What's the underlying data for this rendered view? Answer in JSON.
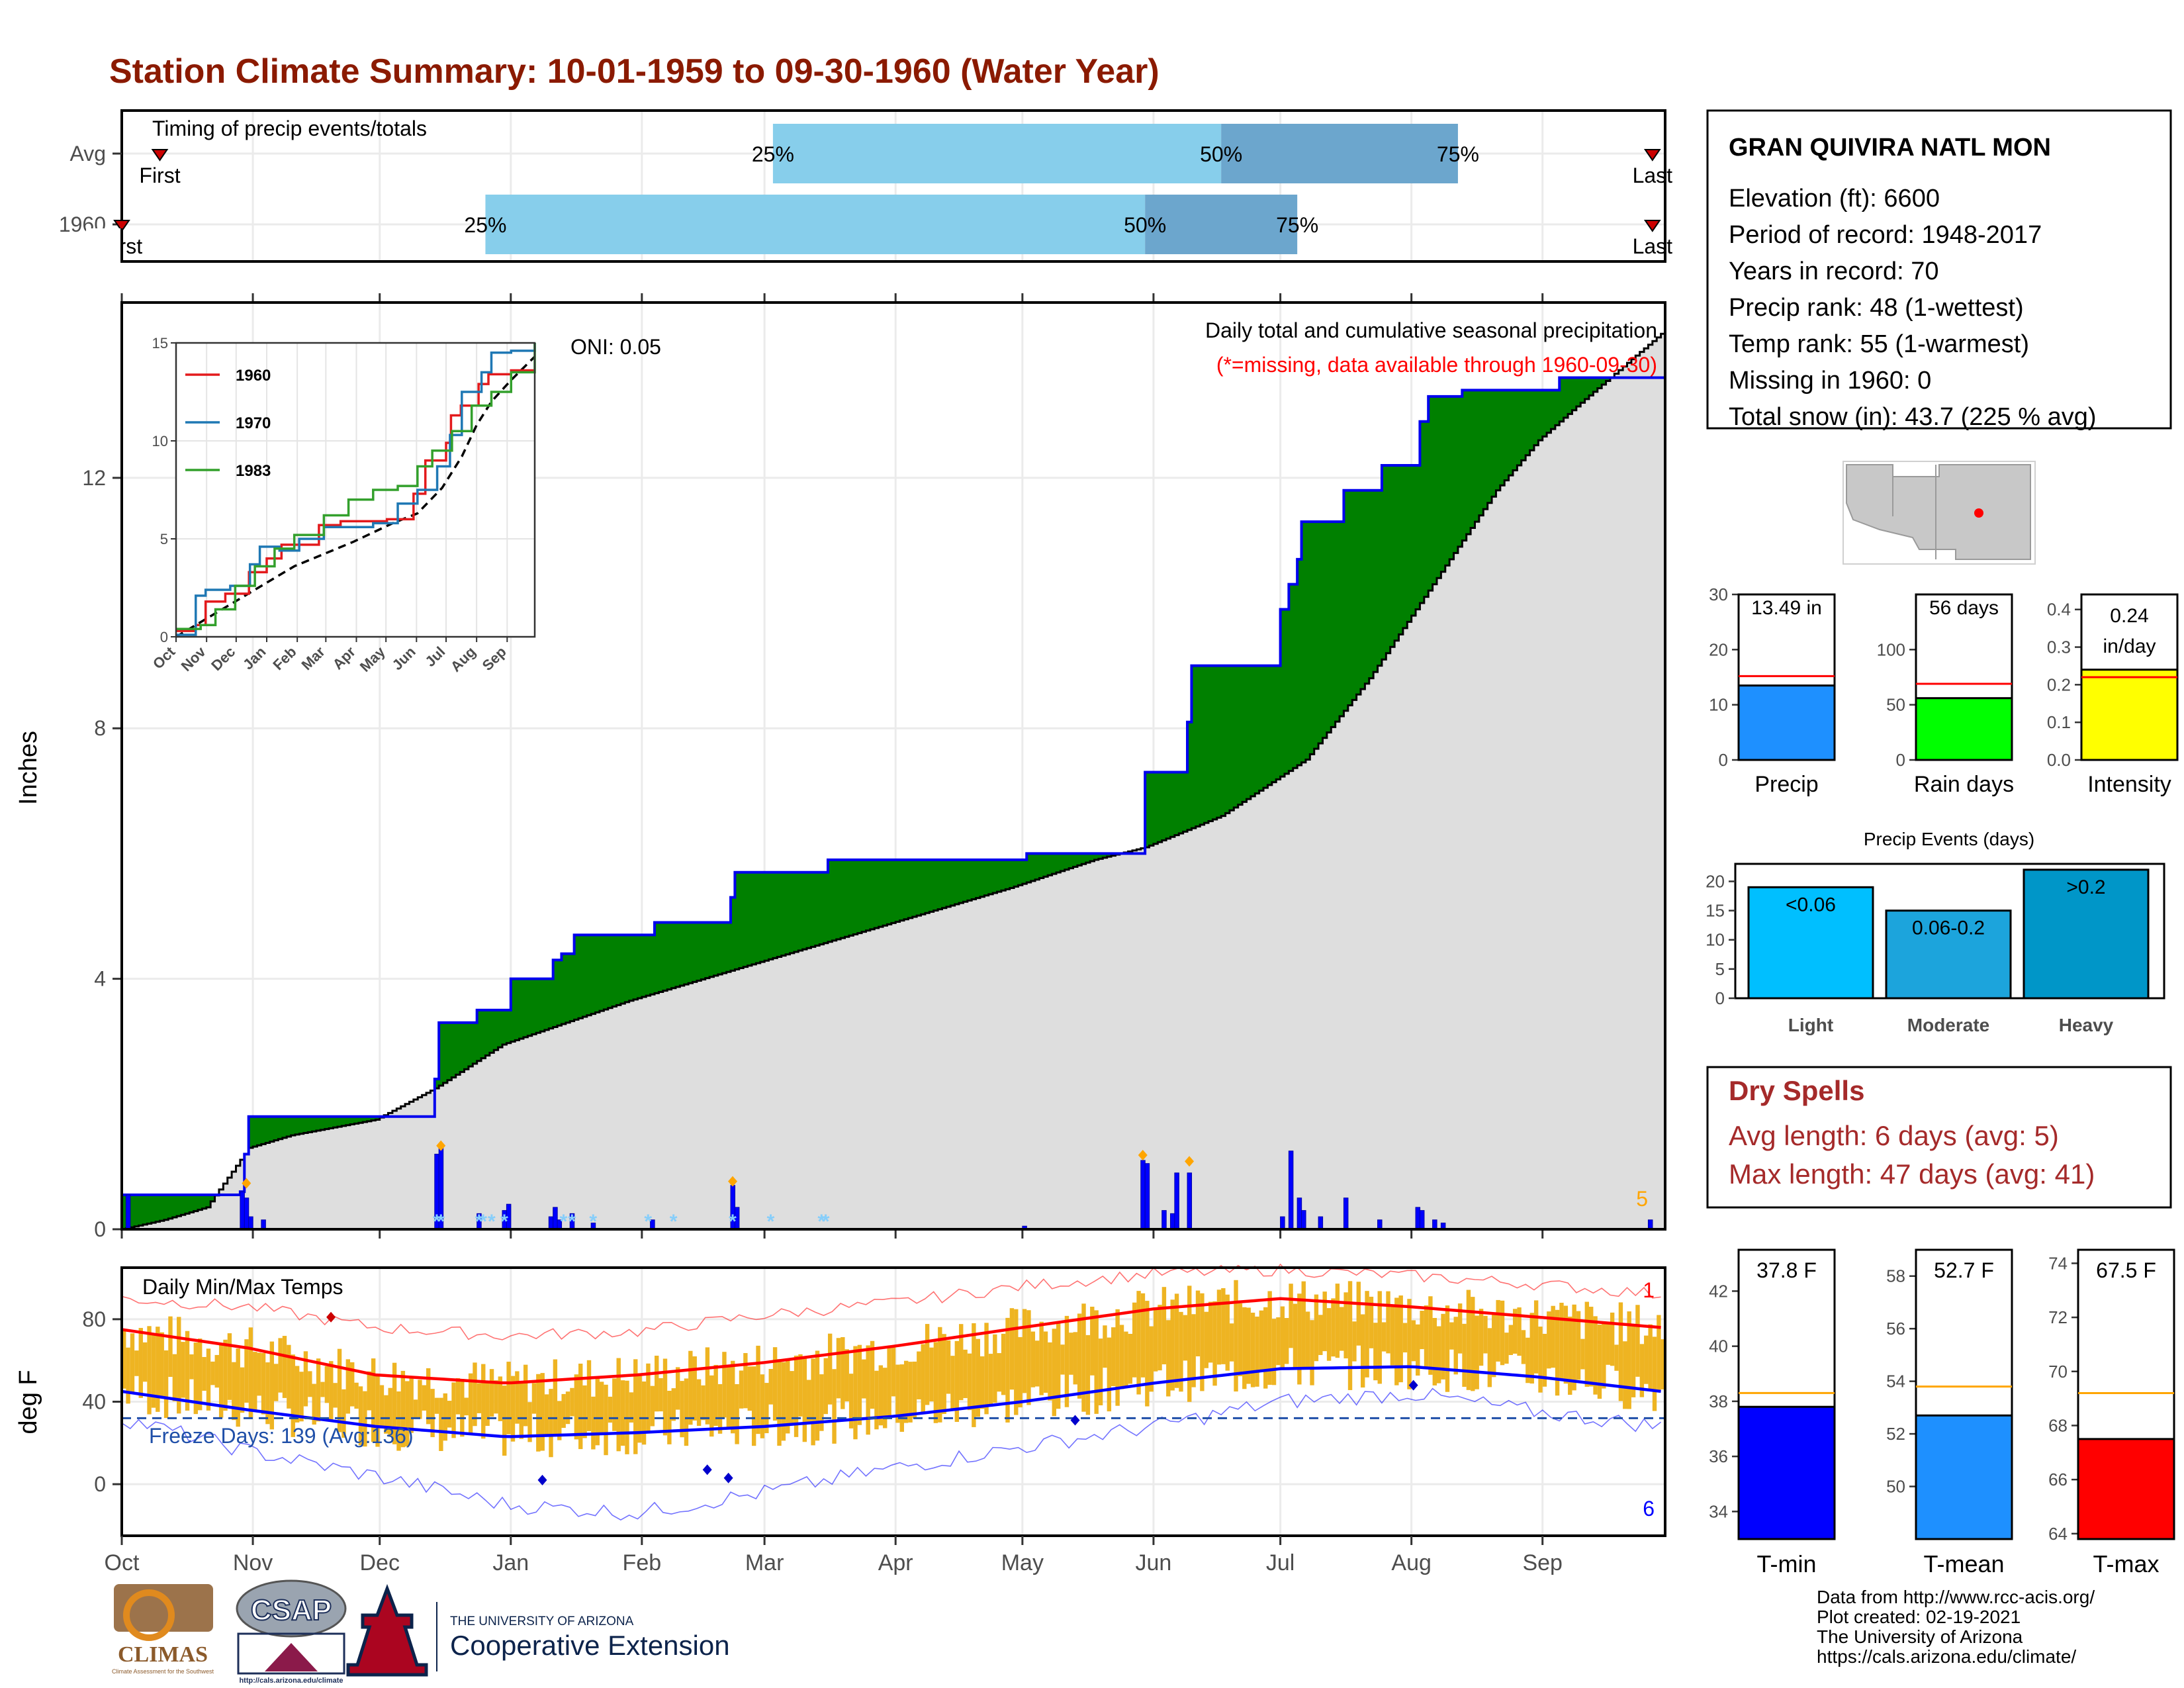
{
  "title": "Station Climate Summary: 10-01-1959 to 09-30-1960 (Water Year)",
  "colors": {
    "title": "#8b1a00",
    "q_light": "#87ceeb",
    "q_dark": "#6ca6cd",
    "above": "#008000",
    "below": "#8b5a0f",
    "normal_fill": "#dedede",
    "cumul_line": "#0000ee",
    "daily_bar": "#0000ff",
    "snow": "#87cefa",
    "marker": "#ffa500",
    "missing_text": "#ff0000",
    "temp_bar": "#eeb422",
    "tmax_line": "#ff0000",
    "tmin_line": "#0000ff",
    "dryspell": "#a52a2a",
    "tmin_bar": "#0000ff",
    "tmean_bar": "#1e90ff",
    "tmax_bar": "#ff0000",
    "rain_bar": "#00ff00",
    "intensity_bar": "#ffff00",
    "precip_bar": "#1e90ff",
    "light_bar": "#00bfff",
    "moderate_bar": "#1ca4dc",
    "heavy_bar": "#0096c8",
    "avg_line": "#ffa500"
  },
  "timing": {
    "label": "Timing of precip events/totals",
    "rows": [
      {
        "label": "Avg",
        "first": "First",
        "last": "Last",
        "p25": "25%",
        "p50": "50%",
        "p75": "75%",
        "first_day": 9,
        "q25_day": 154,
        "q50_day": 260,
        "q75_day": 316,
        "last_day": 362
      },
      {
        "label": "1960",
        "first": "First",
        "last": "Last",
        "p25": "25%",
        "p50": "50%",
        "p75": "75%",
        "first_day": 0,
        "q25_day": 86,
        "q50_day": 242,
        "q75_day": 278,
        "last_day": 362
      }
    ]
  },
  "precip": {
    "ylabel": "Inches",
    "yticks": [
      0,
      4,
      8,
      12
    ],
    "ymax": 14.8,
    "header": "Daily total and cumulative seasonal precipitation",
    "missing": "(*=missing, data available through 1960-09-30)",
    "oni": "ONI: 0.05",
    "count_label": "5",
    "cumulative_steps": [
      [
        0,
        0.55
      ],
      [
        27,
        0.55
      ],
      [
        28,
        0.6
      ],
      [
        29,
        1.2
      ],
      [
        30,
        1.8
      ],
      [
        71,
        1.8
      ],
      [
        74,
        2.4
      ],
      [
        75,
        3.3
      ],
      [
        82,
        3.3
      ],
      [
        84,
        3.5
      ],
      [
        91,
        3.5
      ],
      [
        92,
        4.0
      ],
      [
        100,
        4.0
      ],
      [
        102,
        4.3
      ],
      [
        104,
        4.4
      ],
      [
        106,
        4.4
      ],
      [
        107,
        4.7
      ],
      [
        124,
        4.7
      ],
      [
        126,
        4.9
      ],
      [
        132,
        4.9
      ],
      [
        144,
        5.3
      ],
      [
        145,
        5.7
      ],
      [
        166,
        5.7
      ],
      [
        167,
        5.9
      ],
      [
        213,
        5.9
      ],
      [
        214,
        6.0
      ],
      [
        241,
        6.0
      ],
      [
        242,
        7.3
      ],
      [
        249,
        7.3
      ],
      [
        252,
        8.1
      ],
      [
        253,
        9.0
      ],
      [
        273,
        9.0
      ],
      [
        274,
        9.9
      ],
      [
        276,
        10.3
      ],
      [
        278,
        10.7
      ],
      [
        279,
        11.3
      ],
      [
        286,
        11.3
      ],
      [
        289,
        11.8
      ],
      [
        297,
        11.8
      ],
      [
        298,
        12.2
      ],
      [
        306,
        12.2
      ],
      [
        307,
        12.9
      ],
      [
        309,
        13.3
      ],
      [
        317,
        13.4
      ],
      [
        335,
        13.4
      ],
      [
        340,
        13.6
      ],
      [
        364,
        13.6
      ]
    ],
    "normal_steps": [
      [
        0,
        0.0
      ],
      [
        10,
        0.15
      ],
      [
        20,
        0.35
      ],
      [
        30,
        1.3
      ],
      [
        40,
        1.5
      ],
      [
        60,
        1.75
      ],
      [
        74,
        2.25
      ],
      [
        90,
        2.95
      ],
      [
        120,
        3.65
      ],
      [
        150,
        4.25
      ],
      [
        180,
        4.85
      ],
      [
        210,
        5.45
      ],
      [
        230,
        5.9
      ],
      [
        242,
        6.1
      ],
      [
        260,
        6.6
      ],
      [
        280,
        7.5
      ],
      [
        295,
        8.8
      ],
      [
        310,
        10.3
      ],
      [
        325,
        11.8
      ],
      [
        335,
        12.6
      ],
      [
        345,
        13.2
      ],
      [
        364,
        14.3
      ]
    ],
    "daily_bars": [
      [
        1,
        0.55
      ],
      [
        28,
        0.6
      ],
      [
        29,
        0.5
      ],
      [
        30,
        0.2
      ],
      [
        33,
        0.15
      ],
      [
        74,
        1.2
      ],
      [
        75,
        1.3
      ],
      [
        84,
        0.25
      ],
      [
        90,
        0.3
      ],
      [
        91,
        0.4
      ],
      [
        101,
        0.2
      ],
      [
        102,
        0.35
      ],
      [
        103,
        0.15
      ],
      [
        106,
        0.25
      ],
      [
        111,
        0.1
      ],
      [
        125,
        0.15
      ],
      [
        144,
        0.7
      ],
      [
        145,
        0.35
      ],
      [
        213,
        0.05
      ],
      [
        241,
        1.1
      ],
      [
        242,
        1.05
      ],
      [
        246,
        0.3
      ],
      [
        248,
        0.25
      ],
      [
        249,
        0.9
      ],
      [
        252,
        0.9
      ],
      [
        274,
        0.2
      ],
      [
        276,
        1.25
      ],
      [
        278,
        0.5
      ],
      [
        279,
        0.3
      ],
      [
        283,
        0.2
      ],
      [
        289,
        0.5
      ],
      [
        297,
        0.15
      ],
      [
        306,
        0.35
      ],
      [
        307,
        0.3
      ],
      [
        310,
        0.15
      ],
      [
        312,
        0.1
      ],
      [
        361,
        0.15
      ]
    ],
    "snow_days": [
      74,
      75,
      84,
      85,
      87,
      90,
      104,
      106,
      111,
      124,
      130,
      144,
      153,
      165,
      166
    ],
    "marker_days": [
      [
        29,
        0.65
      ],
      [
        75,
        1.25
      ],
      [
        144,
        0.68
      ],
      [
        241,
        1.1
      ],
      [
        252,
        1.0
      ]
    ]
  },
  "inset": {
    "yticks": [
      0,
      5,
      10,
      15
    ],
    "months": [
      "Oct",
      "Nov",
      "Dec",
      "Jan",
      "Feb",
      "Mar",
      "Apr",
      "May",
      "Jun",
      "Jul",
      "Aug",
      "Sep"
    ],
    "series": [
      {
        "name": "1960",
        "color": "#e31a1c",
        "points": [
          [
            0,
            0.3
          ],
          [
            20,
            0.6
          ],
          [
            30,
            1.8
          ],
          [
            50,
            2.2
          ],
          [
            74,
            3.3
          ],
          [
            92,
            4.0
          ],
          [
            107,
            4.7
          ],
          [
            145,
            5.7
          ],
          [
            167,
            5.9
          ],
          [
            214,
            6.0
          ],
          [
            241,
            7.3
          ],
          [
            253,
            9.0
          ],
          [
            274,
            9.9
          ],
          [
            279,
            11.3
          ],
          [
            289,
            11.8
          ],
          [
            307,
            12.9
          ],
          [
            317,
            13.4
          ],
          [
            340,
            13.6
          ],
          [
            364,
            13.6
          ]
        ]
      },
      {
        "name": "1970",
        "color": "#1f78b4",
        "points": [
          [
            0,
            0.1
          ],
          [
            20,
            2.1
          ],
          [
            30,
            2.4
          ],
          [
            55,
            2.6
          ],
          [
            75,
            3.7
          ],
          [
            85,
            4.6
          ],
          [
            105,
            4.4
          ],
          [
            125,
            5.0
          ],
          [
            150,
            5.6
          ],
          [
            170,
            5.6
          ],
          [
            200,
            5.8
          ],
          [
            225,
            6.8
          ],
          [
            245,
            7.5
          ],
          [
            265,
            8.7
          ],
          [
            278,
            10.3
          ],
          [
            290,
            12.5
          ],
          [
            310,
            13.5
          ],
          [
            320,
            14.5
          ],
          [
            340,
            14.6
          ],
          [
            364,
            15.0
          ]
        ]
      },
      {
        "name": "1983",
        "color": "#33a02c",
        "points": [
          [
            0,
            0.4
          ],
          [
            25,
            0.6
          ],
          [
            40,
            1.4
          ],
          [
            60,
            2.6
          ],
          [
            80,
            3.6
          ],
          [
            100,
            4.5
          ],
          [
            120,
            5.2
          ],
          [
            150,
            6.2
          ],
          [
            175,
            7.0
          ],
          [
            200,
            7.5
          ],
          [
            225,
            7.7
          ],
          [
            245,
            8.7
          ],
          [
            260,
            9.5
          ],
          [
            280,
            10.5
          ],
          [
            300,
            11.8
          ],
          [
            320,
            12.5
          ],
          [
            340,
            13.5
          ],
          [
            364,
            15.0
          ]
        ]
      }
    ],
    "normal_points": [
      [
        0,
        0
      ],
      [
        60,
        1.8
      ],
      [
        120,
        3.6
      ],
      [
        180,
        4.85
      ],
      [
        220,
        5.8
      ],
      [
        245,
        6.3
      ],
      [
        270,
        7.6
      ],
      [
        290,
        9.2
      ],
      [
        305,
        10.8
      ],
      [
        320,
        12.0
      ],
      [
        340,
        13.1
      ],
      [
        364,
        14.3
      ]
    ]
  },
  "temps": {
    "ylabel": "deg F",
    "yticks": [
      0,
      40,
      80
    ],
    "title": "Daily Min/Max Temps",
    "freeze": "Freeze Days: 139 (Avg:136)",
    "freeze_line": 32,
    "count_top": "1",
    "count_bottom": "6",
    "tmax_normal": [
      [
        0,
        75
      ],
      [
        30,
        66
      ],
      [
        60,
        53
      ],
      [
        91,
        49
      ],
      [
        122,
        53
      ],
      [
        152,
        59
      ],
      [
        183,
        67
      ],
      [
        213,
        76
      ],
      [
        244,
        85
      ],
      [
        274,
        90
      ],
      [
        305,
        86
      ],
      [
        335,
        81
      ],
      [
        364,
        76
      ]
    ],
    "tmin_normal": [
      [
        0,
        45
      ],
      [
        30,
        36
      ],
      [
        60,
        28
      ],
      [
        91,
        23
      ],
      [
        122,
        25
      ],
      [
        152,
        28
      ],
      [
        183,
        33
      ],
      [
        213,
        40
      ],
      [
        244,
        49
      ],
      [
        274,
        56
      ],
      [
        305,
        57
      ],
      [
        335,
        52
      ],
      [
        364,
        45
      ]
    ],
    "tmax_record": [
      [
        0,
        90
      ],
      [
        30,
        86
      ],
      [
        60,
        76
      ],
      [
        91,
        72
      ],
      [
        122,
        74
      ],
      [
        152,
        82
      ],
      [
        183,
        88
      ],
      [
        213,
        96
      ],
      [
        244,
        102
      ],
      [
        274,
        104
      ],
      [
        305,
        101
      ],
      [
        335,
        97
      ],
      [
        364,
        92
      ]
    ],
    "tmin_record": [
      [
        0,
        32
      ],
      [
        30,
        16
      ],
      [
        60,
        4
      ],
      [
        91,
        -10
      ],
      [
        122,
        -14
      ],
      [
        152,
        -4
      ],
      [
        183,
        8
      ],
      [
        213,
        18
      ],
      [
        244,
        28
      ],
      [
        274,
        40
      ],
      [
        305,
        44
      ],
      [
        335,
        35
      ],
      [
        364,
        28
      ]
    ],
    "max_markers": [
      [
        49,
        81
      ]
    ],
    "min_markers": [
      [
        99,
        2
      ],
      [
        138,
        7
      ],
      [
        143,
        3
      ],
      [
        225,
        31
      ],
      [
        305,
        48
      ]
    ]
  },
  "months": [
    "Oct",
    "Nov",
    "Dec",
    "Jan",
    "Feb",
    "Mar",
    "Apr",
    "May",
    "Jun",
    "Jul",
    "Aug",
    "Sep"
  ],
  "month_days": [
    0,
    31,
    61,
    92,
    123,
    152,
    183,
    213,
    244,
    274,
    305,
    336
  ],
  "station": {
    "name": "GRAN QUIVIRA NATL MON",
    "lines": [
      "Elevation (ft): 6600",
      "Period of record: 1948-2017",
      "Years in record: 70",
      "Precip rank: 48 (1-wettest)",
      "Temp rank: 55 (1-warmest)",
      "Missing in 1960: 0",
      "Total snow (in): 43.7 (225 % avg)"
    ]
  },
  "mini_bars": [
    {
      "label": "Precip",
      "value": 13.49,
      "text": "13.49 in",
      "avg": 15.2,
      "ymax": 30,
      "yticks": [
        "0",
        "10",
        "20",
        "30"
      ],
      "tick_values": [
        0,
        10,
        20,
        30
      ]
    },
    {
      "label": "Rain days",
      "value": 56,
      "text": "56 days",
      "avg": 69,
      "ymax": 150,
      "yticks": [
        "0",
        "50",
        "100"
      ],
      "tick_values": [
        0,
        50,
        100
      ]
    },
    {
      "label": "Intensity",
      "value": 0.24,
      "text": "0.24 in/day",
      "text1": "0.24",
      "text2": "in/day",
      "avg": 0.22,
      "ymax": 0.44,
      "yticks": [
        "0.0",
        "0.1",
        "0.2",
        "0.3",
        "0.4"
      ],
      "tick_values": [
        0,
        0.1,
        0.2,
        0.3,
        0.4
      ]
    }
  ],
  "events": {
    "title": "Precip Events (days)",
    "yticks": [
      0,
      5,
      10,
      15,
      20
    ],
    "ymax": 23,
    "bars": [
      {
        "category": "Light",
        "value": 19,
        "label": "<0.06"
      },
      {
        "category": "Moderate",
        "value": 15,
        "label": "0.06-0.2"
      },
      {
        "category": "Heavy",
        "value": 22,
        "label": ">0.2"
      }
    ]
  },
  "dryspells": {
    "title": "Dry Spells",
    "avg": "Avg length: 6 days (avg: 5)",
    "max": "Max length: 47 days (avg: 41)"
  },
  "tbars": [
    {
      "label": "T-min",
      "value": 37.8,
      "text": "37.8 F",
      "avg": 38.3,
      "ymin": 33,
      "ymax": 43.5,
      "ticks": [
        34,
        36,
        38,
        40,
        42
      ]
    },
    {
      "label": "T-mean",
      "value": 52.7,
      "text": "52.7 F",
      "avg": 53.8,
      "ymin": 48,
      "ymax": 59,
      "ticks": [
        50,
        52,
        54,
        56,
        58
      ]
    },
    {
      "label": "T-max",
      "value": 67.5,
      "text": "67.5 F",
      "avg": 69.2,
      "ymin": 63.8,
      "ymax": 74.5,
      "ticks": [
        64,
        66,
        68,
        70,
        72,
        74
      ]
    }
  ],
  "credits": {
    "lines": [
      "Data from http://www.rcc-acis.org/",
      "Plot created: 02-19-2021",
      "The University of Arizona",
      "https://cals.arizona.edu/climate/"
    ]
  },
  "logos": {
    "climas": "CLIMAS",
    "climas_sub": "Climate Assessment for the Southwest",
    "csap": "CSAP",
    "csap_url": "http://cals.arizona.edu/climate",
    "ua_top": "THE UNIVERSITY OF ARIZONA",
    "ua_bottom": "Cooperative Extension"
  }
}
